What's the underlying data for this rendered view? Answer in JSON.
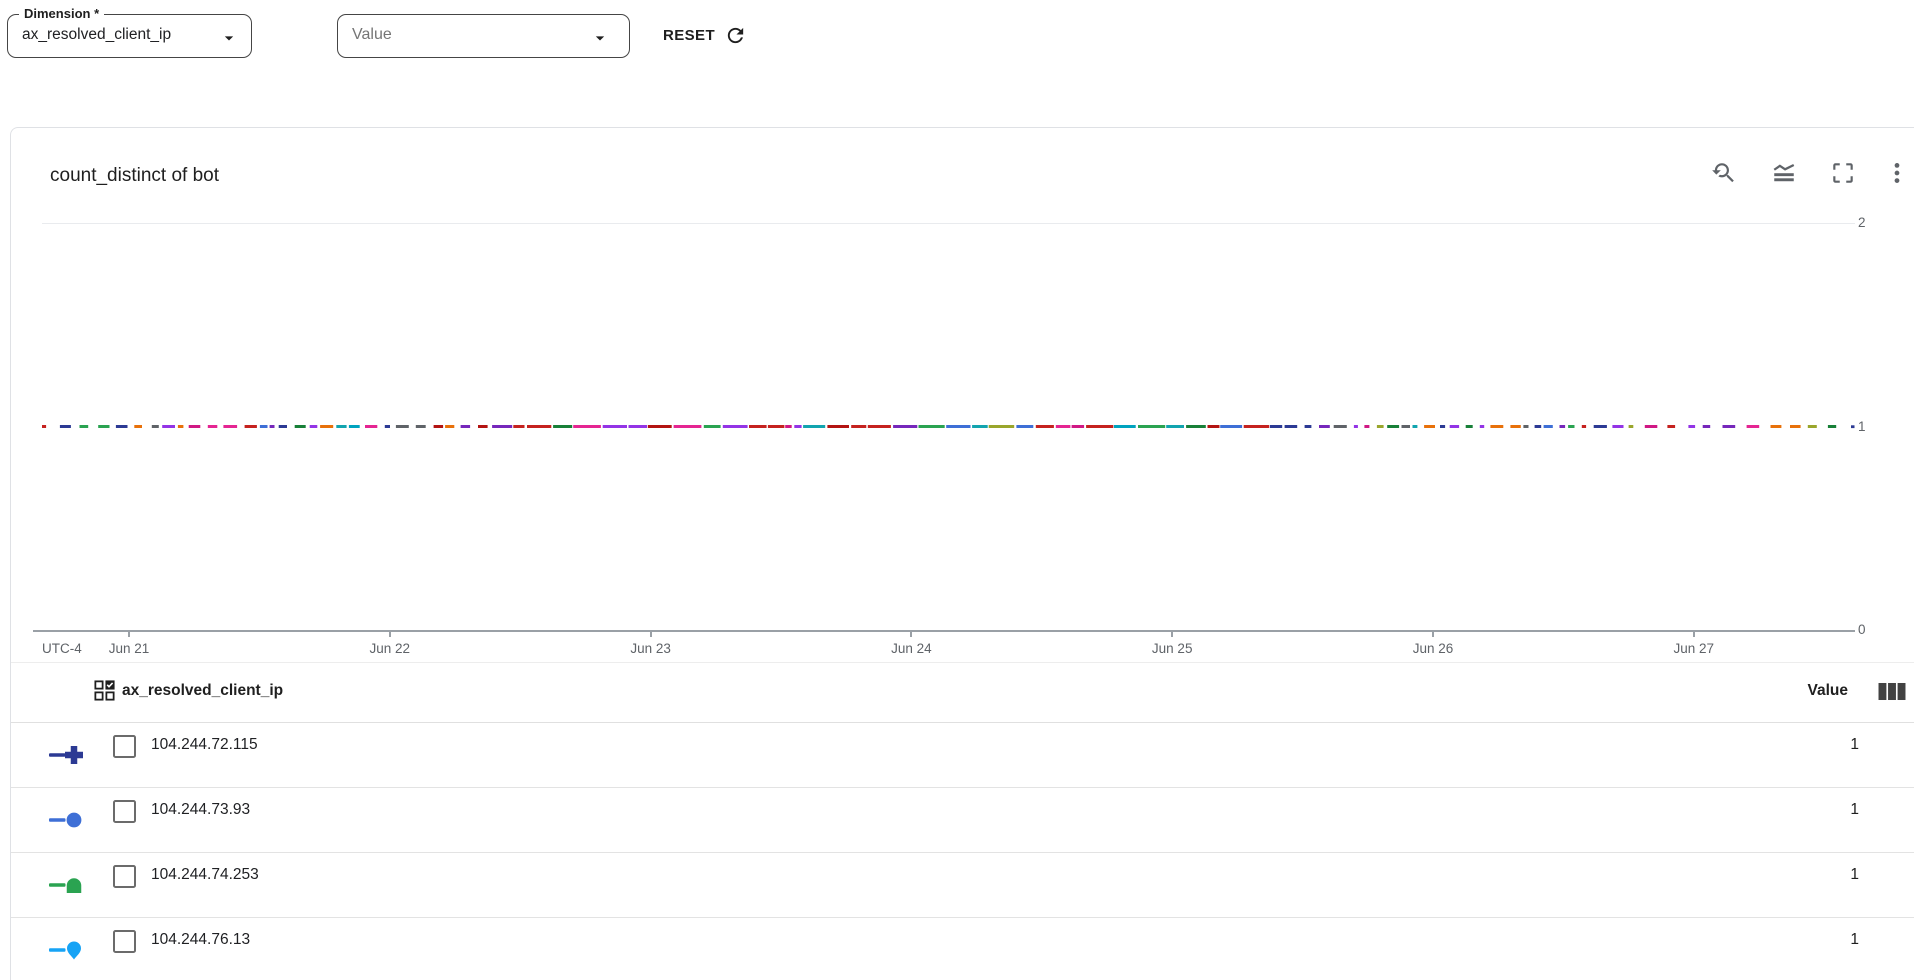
{
  "controls": {
    "dimension_select": {
      "label": "Dimension *",
      "value": "ax_resolved_client_ip"
    },
    "value_select": {
      "placeholder": "Value"
    },
    "reset": {
      "label": "RESET"
    }
  },
  "chart": {
    "title": "count_distinct of bot",
    "toolbar_icons": [
      "zoom-reset-icon",
      "chart-type-icon",
      "fullscreen-icon",
      "more-options-icon"
    ]
  },
  "chart_data": {
    "type": "line",
    "title": "count_distinct of bot",
    "x_axis": {
      "timezone_label": "UTC-4",
      "tick_labels": [
        "Jun 21",
        "Jun 22",
        "Jun 23",
        "Jun 24",
        "Jun 25",
        "Jun 26",
        "Jun 27"
      ]
    },
    "y_axis": {
      "ticks": [
        0,
        1,
        2
      ],
      "ylim": [
        0,
        2
      ]
    },
    "note": "Many per-IP time series, each constant at value 1, drawn as short overlapping colored dashes along the y=1 line; denser toward the middle of the time range.",
    "series": [
      {
        "name": "104.244.72.115",
        "value": 1,
        "color": "#2c3a94",
        "marker": "plus"
      },
      {
        "name": "104.244.73.93",
        "value": 1,
        "color": "#3e6fd6",
        "marker": "circle"
      },
      {
        "name": "104.244.74.253",
        "value": 1,
        "color": "#2aa351",
        "marker": "arch"
      },
      {
        "name": "104.244.76.13",
        "value": 1,
        "color": "#17a3f5",
        "marker": "pin"
      }
    ],
    "dash_palette": [
      "#c5221f",
      "#d01884",
      "#9334e6",
      "#2aa351",
      "#e8710a",
      "#12a4af",
      "#3e6fd6",
      "#2c3a94",
      "#9aa62c",
      "#e52592",
      "#188038",
      "#7627bb",
      "#b31412",
      "#00a3bf",
      "#5f6368"
    ]
  },
  "table": {
    "dimension_header": "ax_resolved_client_ip",
    "value_header": "Value",
    "header_icons": {
      "left": "dimension-grid-check-icon",
      "right": "columns-icon"
    },
    "rows": [
      {
        "label": "104.244.72.115",
        "value": "1",
        "color": "#2c3a94",
        "marker": "plus"
      },
      {
        "label": "104.244.73.93",
        "value": "1",
        "color": "#3e6fd6",
        "marker": "circle"
      },
      {
        "label": "104.244.74.253",
        "value": "1",
        "color": "#2aa351",
        "marker": "arch"
      },
      {
        "label": "104.244.76.13",
        "value": "1",
        "color": "#17a3f5",
        "marker": "pin"
      }
    ]
  }
}
